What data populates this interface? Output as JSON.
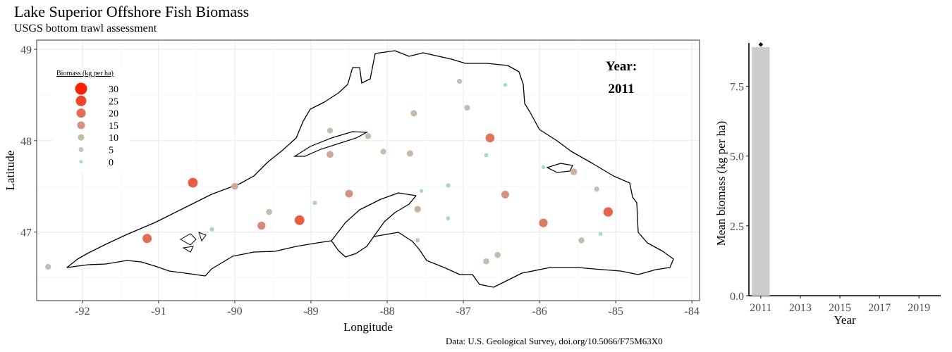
{
  "title": "Lake Superior Offshore Fish Biomass",
  "subtitle": "USGS bottom trawl assessment",
  "caption": "Data: U.S. Geological Survey, doi.org/10.5066/F75M63X0",
  "chart_data": [
    {
      "type": "scatter",
      "xlabel": "Longitude",
      "ylabel": "Latitude",
      "xlim": [
        -92.6,
        -83.9
      ],
      "ylim": [
        46.25,
        49.1
      ],
      "xticks": [
        -92,
        -91,
        -90,
        -89,
        -88,
        -87,
        -86,
        -85,
        -84
      ],
      "yticks": [
        47,
        48,
        49
      ],
      "grid": true,
      "legend": {
        "title": "Biomass (kg per ha)",
        "placement": "top-left",
        "levels": [
          30,
          25,
          20,
          15,
          10,
          5,
          0
        ]
      },
      "annotation": {
        "label": "Year:",
        "value": "2011"
      },
      "color_scale": {
        "low": "#9fdde0",
        "mid": "#c8b8a8",
        "high": "#ff2000"
      },
      "points": [
        {
          "lon": -92.45,
          "lat": 46.62,
          "biomass": 8
        },
        {
          "lon": -91.15,
          "lat": 46.93,
          "biomass": 20
        },
        {
          "lon": -90.55,
          "lat": 47.54,
          "biomass": 22
        },
        {
          "lon": -90.0,
          "lat": 47.5,
          "biomass": 12
        },
        {
          "lon": -90.3,
          "lat": 47.03,
          "biomass": 3
        },
        {
          "lon": -89.65,
          "lat": 47.07,
          "biomass": 16
        },
        {
          "lon": -89.55,
          "lat": 47.22,
          "biomass": 9
        },
        {
          "lon": -89.15,
          "lat": 47.13,
          "biomass": 22
        },
        {
          "lon": -88.95,
          "lat": 47.32,
          "biomass": 3
        },
        {
          "lon": -88.75,
          "lat": 48.11,
          "biomass": 8
        },
        {
          "lon": -88.75,
          "lat": 47.85,
          "biomass": 12
        },
        {
          "lon": -88.5,
          "lat": 47.42,
          "biomass": 15
        },
        {
          "lon": -88.25,
          "lat": 48.05,
          "biomass": 9
        },
        {
          "lon": -88.05,
          "lat": 47.88,
          "biomass": 8
        },
        {
          "lon": -87.7,
          "lat": 47.86,
          "biomass": 10
        },
        {
          "lon": -87.65,
          "lat": 48.3,
          "biomass": 10
        },
        {
          "lon": -87.6,
          "lat": 47.25,
          "biomass": 11
        },
        {
          "lon": -87.6,
          "lat": 46.91,
          "biomass": 3
        },
        {
          "lon": -87.55,
          "lat": 47.45,
          "biomass": 1
        },
        {
          "lon": -87.2,
          "lat": 47.51,
          "biomass": 3
        },
        {
          "lon": -87.2,
          "lat": 47.15,
          "biomass": 2
        },
        {
          "lon": -87.05,
          "lat": 48.65,
          "biomass": 6
        },
        {
          "lon": -86.95,
          "lat": 48.36,
          "biomass": 8
        },
        {
          "lon": -86.65,
          "lat": 48.03,
          "biomass": 19
        },
        {
          "lon": -86.7,
          "lat": 47.84,
          "biomass": 2
        },
        {
          "lon": -86.7,
          "lat": 46.68,
          "biomass": 9
        },
        {
          "lon": -86.55,
          "lat": 46.75,
          "biomass": 9
        },
        {
          "lon": -86.45,
          "lat": 48.61,
          "biomass": 1
        },
        {
          "lon": -86.45,
          "lat": 47.41,
          "biomass": 15
        },
        {
          "lon": -85.95,
          "lat": 47.71,
          "biomass": 1
        },
        {
          "lon": -85.95,
          "lat": 47.1,
          "biomass": 18
        },
        {
          "lon": -85.55,
          "lat": 47.66,
          "biomass": 11
        },
        {
          "lon": -85.45,
          "lat": 46.91,
          "biomass": 9
        },
        {
          "lon": -85.25,
          "lat": 47.47,
          "biomass": 6
        },
        {
          "lon": -85.2,
          "lat": 46.98,
          "biomass": 2
        },
        {
          "lon": -85.1,
          "lat": 47.22,
          "biomass": 21
        }
      ]
    },
    {
      "type": "bar",
      "xlabel": "Year",
      "ylabel": "Mean biomass (kg per ha)",
      "categories": [
        "2011"
      ],
      "values": [
        8.9
      ],
      "xlim": [
        2010.4,
        2020.1
      ],
      "xticks": [
        2011,
        2013,
        2015,
        2017,
        2019
      ],
      "ylim": [
        0,
        9.05
      ],
      "yticks": [
        0.0,
        2.5,
        5.0,
        7.5
      ],
      "grid": false
    }
  ]
}
